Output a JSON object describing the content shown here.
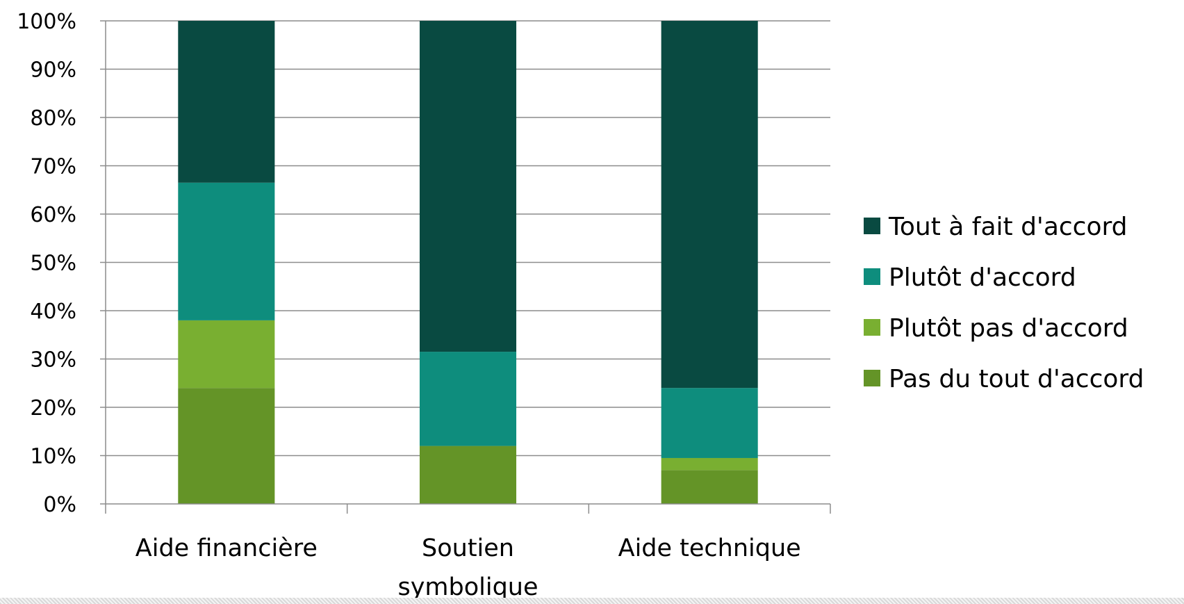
{
  "chart_data": {
    "type": "bar",
    "stacked": true,
    "percent": true,
    "categories": [
      "Aide financière",
      "Soutien symbolique",
      "Aide technique"
    ],
    "category_label_lines": [
      [
        "Aide financière"
      ],
      [
        "Soutien",
        "symbolique"
      ],
      [
        "Aide technique"
      ]
    ],
    "series": [
      {
        "name": "Pas du tout d'accord",
        "color": "#649427",
        "values": [
          24,
          12,
          7
        ]
      },
      {
        "name": "Plutôt pas d'accord",
        "color": "#79AF31",
        "values": [
          14,
          0,
          2.5
        ]
      },
      {
        "name": "Plutôt d'accord",
        "color": "#0E8D7D",
        "values": [
          28.5,
          19.5,
          14.5
        ]
      },
      {
        "name": "Tout à fait d'accord",
        "color": "#094A41",
        "values": [
          33.5,
          68.5,
          76
        ]
      }
    ],
    "legend_order": [
      "Tout à fait d'accord",
      "Plutôt d'accord",
      "Plutôt pas d'accord",
      "Pas du tout d'accord"
    ],
    "ylim": [
      0,
      100
    ],
    "yticks": [
      "0%",
      "10%",
      "20%",
      "30%",
      "40%",
      "50%",
      "60%",
      "70%",
      "80%",
      "90%",
      "100%"
    ],
    "grid": true,
    "legend_position": "right",
    "title": "",
    "xlabel": "",
    "ylabel": ""
  }
}
